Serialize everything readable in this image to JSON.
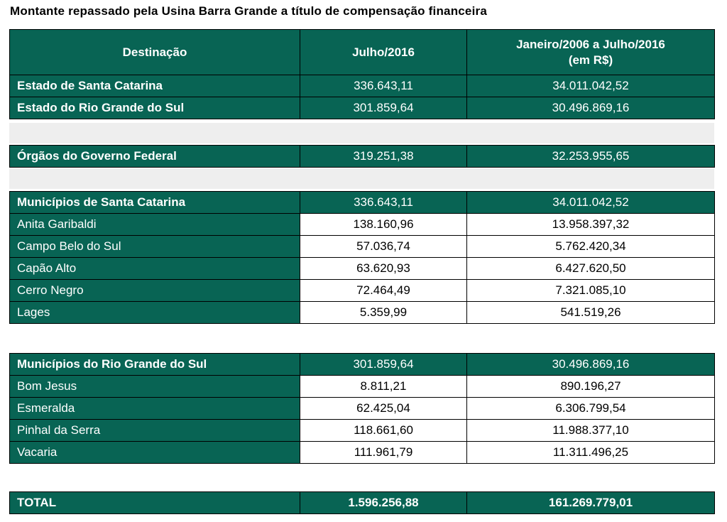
{
  "title": "Montante repassado pela Usina Barra Grande a título de compensação financeira",
  "header": {
    "col1": "Destinação",
    "col2": "Julho/2016",
    "col3_line1": "Janeiro/2006  a Julho/2016",
    "col3_line2": "(em R$)"
  },
  "estados": [
    {
      "name": "Estado de Santa Catarina",
      "jul2016": "336.643,11",
      "acum": "34.011.042,52"
    },
    {
      "name": "Estado do Rio Grande do Sul",
      "jul2016": "301.859,64",
      "acum": "30.496.869,16"
    }
  ],
  "federal": {
    "name": "Órgãos do Governo Federal",
    "jul2016": "319.251,38",
    "acum": "32.253.955,65"
  },
  "sc": {
    "group": {
      "name": "Municípios de Santa Catarina",
      "jul2016": "336.643,11",
      "acum": "34.011.042,52"
    },
    "rows": [
      {
        "name": "Anita Garibaldi",
        "jul2016": "138.160,96",
        "acum": "13.958.397,32"
      },
      {
        "name": "Campo Belo do Sul",
        "jul2016": "57.036,74",
        "acum": "5.762.420,34"
      },
      {
        "name": "Capão Alto",
        "jul2016": "63.620,93",
        "acum": "6.427.620,50"
      },
      {
        "name": "Cerro Negro",
        "jul2016": "72.464,49",
        "acum": "7.321.085,10"
      },
      {
        "name": "Lages",
        "jul2016": "5.359,99",
        "acum": "541.519,26"
      }
    ]
  },
  "rs": {
    "group": {
      "name": "Municípios do Rio Grande do Sul",
      "jul2016": "301.859,64",
      "acum": "30.496.869,16"
    },
    "rows": [
      {
        "name": "Bom Jesus",
        "jul2016": "8.811,21",
        "acum": "890.196,27"
      },
      {
        "name": "Esmeralda",
        "jul2016": "62.425,04",
        "acum": "6.306.799,54"
      },
      {
        "name": "Pinhal da Serra",
        "jul2016": "118.661,60",
        "acum": "11.988.377,10"
      },
      {
        "name": "Vacaria",
        "jul2016": "111.961,79",
        "acum": "11.311.496,25"
      }
    ]
  },
  "total": {
    "name": "TOTAL",
    "jul2016": "1.596.256,88",
    "acum": "161.269.779,01"
  },
  "colors": {
    "header_bg": "#086454",
    "separator": "#eeeeee"
  }
}
